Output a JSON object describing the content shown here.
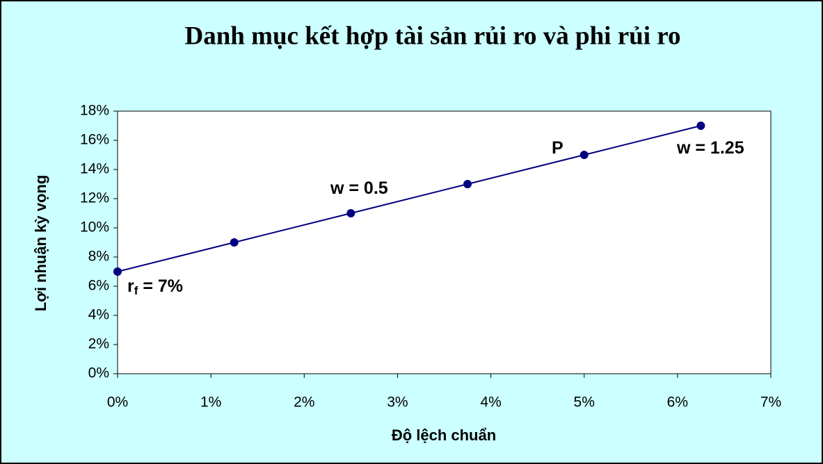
{
  "chart_data": {
    "type": "scatter",
    "title": "Danh mục kết hợp tài sản rủi ro và phi rủi ro",
    "x_label": "Độ lệch chuẩn",
    "y_label": "Lợi nhuận kỳ vọng",
    "series": [
      {
        "color": "#000080",
        "x": [
          0,
          1.25,
          2.5,
          3.75,
          5,
          6.25
        ],
        "values": [
          7,
          9,
          11,
          13,
          15,
          17
        ]
      }
    ],
    "xlim": [
      0,
      7
    ],
    "xticks": [
      {
        "value": 0,
        "label": "0%"
      },
      {
        "value": 1,
        "label": "1%"
      },
      {
        "value": 2,
        "label": "2%"
      },
      {
        "value": 3,
        "label": "3%"
      },
      {
        "value": 4,
        "label": "4%"
      },
      {
        "value": 5,
        "label": "5%"
      },
      {
        "value": 6,
        "label": "6%"
      },
      {
        "value": 7,
        "label": "7%"
      }
    ],
    "ylim": [
      0,
      18
    ],
    "yticks": [
      {
        "value": 0,
        "label": "0%"
      },
      {
        "value": 2,
        "label": "2%"
      },
      {
        "value": 4,
        "label": "4%"
      },
      {
        "value": 6,
        "label": "6%"
      },
      {
        "value": 8,
        "label": "8%"
      },
      {
        "value": 10,
        "label": "10%"
      },
      {
        "value": 12,
        "label": "12%"
      },
      {
        "value": 14,
        "label": "14%"
      },
      {
        "value": 16,
        "label": "16%"
      },
      {
        "value": 18,
        "label": "18%"
      }
    ],
    "annotations": [
      [
        "r",
        "f",
        " = 7%"
      ],
      [
        "w = 0.5"
      ],
      [
        "P"
      ],
      [
        "w = 1.25"
      ]
    ]
  }
}
